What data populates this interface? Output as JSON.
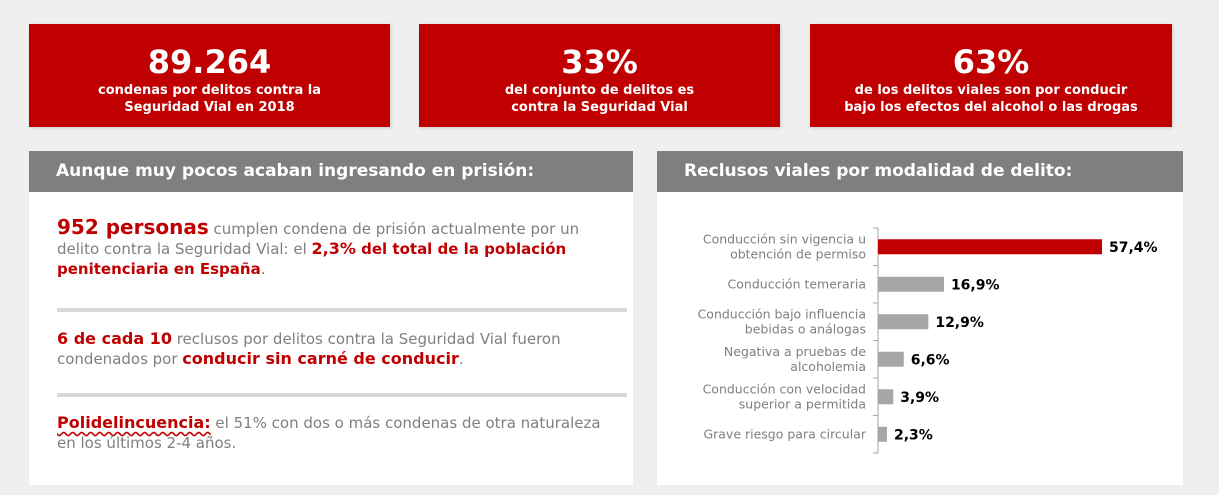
{
  "stats": [
    {
      "big": "89.264",
      "line1": "condenas por delitos contra la",
      "line2": "Seguridad Vial en 2018"
    },
    {
      "big": "33%",
      "line1": "del conjunto de delitos es",
      "line2": "contra la Seguridad Vial"
    },
    {
      "big": "63%",
      "line1": "de los delitos viales son por conducir",
      "line2": "bajo los efectos del alcohol o las drogas"
    }
  ],
  "left_panel": {
    "header": "Aunque muy pocos acaban ingresando en prisión:",
    "p1": {
      "a": "952 personas",
      "b": " cumplen condena de prisión actualmente por un delito contra la Seguridad Vial: el ",
      "c": "2,3%",
      "d": " del total de la población penitenciaria en España",
      "e": "."
    },
    "p2": {
      "a": "6 de cada 10",
      "b": " reclusos por delitos contra la Seguridad Vial fueron condenados por ",
      "c": "conducir sin carné de conducir",
      "d": "."
    },
    "p3": {
      "a": "Polidelincuencia:",
      "b": " el 51% con dos o más condenas de otra naturaleza en los últimos 2-4 años."
    }
  },
  "right_panel": {
    "header": "Reclusos viales por modalidad de delito:"
  },
  "chart_data": {
    "type": "bar",
    "orientation": "horizontal",
    "categories": [
      [
        "Conducción sin vigencia u",
        "obtención de permiso"
      ],
      [
        "Conducción temeraria"
      ],
      [
        "Conducción bajo influencia",
        "bebidas o análogas"
      ],
      [
        "Negativa a pruebas de",
        "alcoholemia"
      ],
      [
        "Conducción con velocidad",
        "superior a permitida"
      ],
      [
        "Grave riesgo para circular"
      ]
    ],
    "values": [
      57.4,
      16.9,
      12.9,
      6.6,
      3.9,
      2.3
    ],
    "value_labels": [
      "57,4%",
      "16,9%",
      "12,9%",
      "6,6%",
      "3,9%",
      "2,3%"
    ],
    "xlim": [
      0,
      60
    ],
    "colors": {
      "highlight": "#c00000",
      "default": "#a6a6a6"
    },
    "grid": false,
    "legend": "none"
  }
}
